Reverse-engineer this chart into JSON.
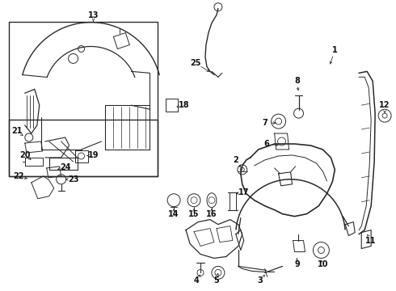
{
  "bg_color": "#ffffff",
  "line_color": "#2a2a2a",
  "fig_width": 4.9,
  "fig_height": 3.6,
  "dpi": 100,
  "label_fontsize": 7.0,
  "arrow_lw": 0.55
}
